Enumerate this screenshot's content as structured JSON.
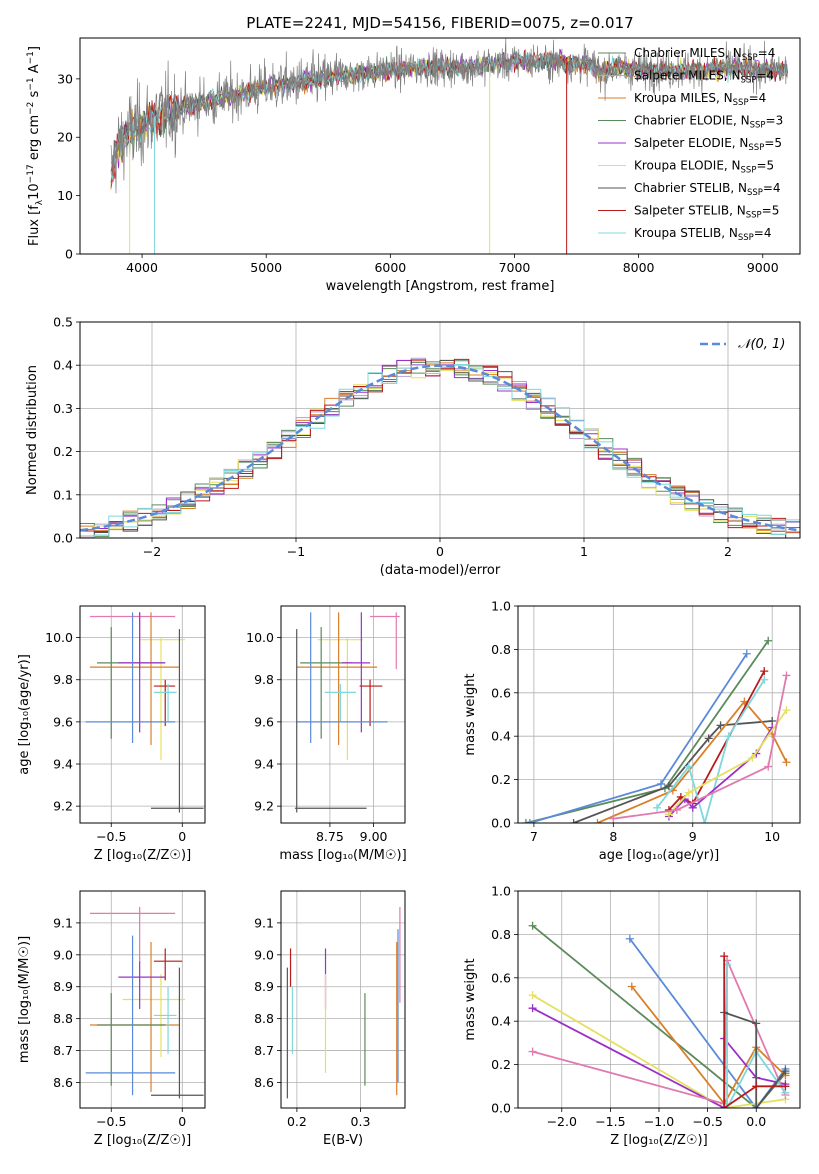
{
  "title": "PLATE=2241, MJD=54156, FIBERID=0075, z=0.017",
  "colors": {
    "Chabrier MILES": "#5b8a6b",
    "Salpeter MILES": "#b59fd6",
    "Kroupa MILES": "#d97f2a",
    "Chabrier ELODIE": "#5b8a5b",
    "Salpeter ELODIE": "#9b30c8",
    "Kroupa ELODIE": "#e6e060",
    "Chabrier STELIB": "#555555",
    "Salpeter STELIB": "#b81b1b",
    "Kroupa STELIB": "#7fd8dc",
    "MILESblue": "#5a8ad9",
    "pink": "#e07ab0",
    "lime": "#c8ec4a",
    "normal": "#5a8ad9"
  },
  "chart_data": [
    {
      "id": "spectrum",
      "type": "line",
      "xlabel": "wavelength [Angstrom, rest frame]",
      "ylabel_parts": {
        "a": "Flux [f",
        "b": "λ",
        "c": "10",
        "d": "−17",
        "e": " erg cm",
        "f": "−2",
        "g": " s",
        "h": "−1",
        "i": " A",
        "j": "−1",
        "k": "]"
      },
      "xlim": [
        3500,
        9300
      ],
      "ylim": [
        0,
        37
      ],
      "xticks": [
        4000,
        5000,
        6000,
        7000,
        8000,
        9000
      ],
      "yticks": [
        0,
        10,
        20,
        30
      ],
      "continuum": {
        "x": [
          3750,
          3800,
          3900,
          4000,
          4100,
          4300,
          4500,
          4800,
          5000,
          5300,
          5600,
          6000,
          6300,
          6600,
          7000,
          7300,
          7600,
          7700,
          7800,
          8000,
          8200,
          8500,
          8800,
          9000,
          9200
        ],
        "y": [
          14,
          18,
          21,
          22,
          23.5,
          25,
          26,
          27.5,
          28.5,
          29.5,
          30.5,
          31.5,
          32,
          32,
          33,
          33,
          32.5,
          31,
          32,
          31.5,
          31.5,
          31.5,
          32,
          31.5,
          31.5
        ]
      },
      "legend": [
        {
          "name": "Chabrier MILES",
          "sub": "SSP",
          "n": "4"
        },
        {
          "name": "Salpeter MILES",
          "sub": "SSP",
          "n": "4"
        },
        {
          "name": "Kroupa MILES",
          "sub": "SSP",
          "n": "4"
        },
        {
          "name": "Chabrier ELODIE",
          "sub": "SSP",
          "n": "3"
        },
        {
          "name": "Salpeter ELODIE",
          "sub": "SSP",
          "n": "5"
        },
        {
          "name": "Kroupa ELODIE",
          "sub": "SSP",
          "n": "5"
        },
        {
          "name": "Chabrier STELIB",
          "sub": "SSP",
          "n": "4"
        },
        {
          "name": "Salpeter STELIB",
          "sub": "SSP",
          "n": "5"
        },
        {
          "name": "Kroupa STELIB",
          "sub": "SSP",
          "n": "4"
        }
      ],
      "legend_prefix": "N"
    },
    {
      "id": "residuals",
      "type": "histogram",
      "xlabel": "(data-model)/error",
      "ylabel": "Normed distribution",
      "xlim": [
        -2.5,
        2.5
      ],
      "ylim": [
        0,
        0.5
      ],
      "xticks": [
        -2,
        -1,
        0,
        1,
        2
      ],
      "yticks": [
        0.0,
        0.1,
        0.2,
        0.3,
        0.4,
        0.5
      ],
      "bin_width": 0.1,
      "legend": "𝒩(0, 1)",
      "grid": true
    },
    {
      "id": "age-vs-Z",
      "type": "scatter",
      "xlabel": "Z [log₁₀(Z/Z☉)]",
      "ylabel": "age  [log₁₀(age/yr)]",
      "xlim": [
        -0.72,
        0.16
      ],
      "ylim": [
        9.12,
        10.15
      ],
      "xticks": [
        -0.5,
        0.0
      ],
      "yticks": [
        9.2,
        9.4,
        9.6,
        9.8,
        10.0
      ],
      "points": [
        {
          "c": "pink",
          "x": -0.3,
          "y": 10.1,
          "xe": [
            -0.65,
            -0.05
          ],
          "ye": [
            9.85,
            10.12
          ]
        },
        {
          "c": "Kroupa ELODIE",
          "x": -0.15,
          "y": 9.99,
          "xe": [
            -0.3,
            0.02
          ],
          "ye": [
            9.42,
            10.0
          ]
        },
        {
          "c": "Kroupa MILES",
          "x": -0.22,
          "y": 9.86,
          "xe": [
            -0.65,
            -0.02
          ],
          "ye": [
            9.49,
            10.12
          ]
        },
        {
          "c": "Chabrier ELODIE",
          "x": -0.5,
          "y": 9.88,
          "xe": [
            -0.6,
            -0.12
          ],
          "ye": [
            9.52,
            10.05
          ]
        },
        {
          "c": "Salpeter ELODIE",
          "x": -0.3,
          "y": 9.88,
          "xe": [
            -0.45,
            -0.12
          ],
          "ye": [
            9.55,
            10.12
          ]
        },
        {
          "c": "Salpeter STELIB",
          "x": -0.12,
          "y": 9.77,
          "xe": [
            -0.2,
            -0.05
          ],
          "ye": [
            9.58,
            9.8
          ]
        },
        {
          "c": "Kroupa STELIB",
          "x": -0.1,
          "y": 9.74,
          "xe": [
            -0.2,
            -0.04
          ],
          "ye": [
            9.6,
            9.78
          ]
        },
        {
          "c": "MILESblue",
          "x": -0.35,
          "y": 9.6,
          "xe": [
            -0.68,
            -0.05
          ],
          "ye": [
            9.5,
            10.12
          ]
        },
        {
          "c": "Chabrier STELIB",
          "x": -0.02,
          "y": 9.19,
          "xe": [
            -0.22,
            0.15
          ],
          "ye": [
            9.17,
            10.04
          ]
        }
      ]
    },
    {
      "id": "age-vs-mass",
      "type": "scatter",
      "xlabel": "mass [log₁₀(M/M☉)]",
      "xlim": [
        8.47,
        9.18
      ],
      "ylim": [
        9.12,
        10.15
      ],
      "xticks": [
        8.75,
        9.0
      ],
      "xticklabels": [
        "8.75",
        "9.00"
      ],
      "yticks": [
        9.2,
        9.4,
        9.6,
        9.8,
        10.0
      ],
      "points": [
        {
          "c": "pink",
          "x": 9.13,
          "y": 10.1,
          "xe": [
            8.98,
            9.15
          ],
          "ye": [
            9.85,
            10.12
          ]
        },
        {
          "c": "Kroupa ELODIE",
          "x": 8.85,
          "y": 9.99,
          "xe": [
            8.68,
            8.94
          ],
          "ye": [
            9.42,
            10.0
          ]
        },
        {
          "c": "Kroupa MILES",
          "x": 8.8,
          "y": 9.86,
          "xe": [
            8.56,
            9.02
          ],
          "ye": [
            9.49,
            10.12
          ]
        },
        {
          "c": "Chabrier ELODIE",
          "x": 8.7,
          "y": 9.88,
          "xe": [
            8.58,
            8.88
          ],
          "ye": [
            9.52,
            10.05
          ]
        },
        {
          "c": "Salpeter ELODIE",
          "x": 8.93,
          "y": 9.88,
          "xe": [
            8.82,
            8.98
          ],
          "ye": [
            9.55,
            10.12
          ]
        },
        {
          "c": "Salpeter STELIB",
          "x": 8.98,
          "y": 9.77,
          "xe": [
            8.92,
            9.05
          ],
          "ye": [
            9.58,
            9.8
          ]
        },
        {
          "c": "Kroupa STELIB",
          "x": 8.81,
          "y": 9.74,
          "xe": [
            8.72,
            8.9
          ],
          "ye": [
            9.6,
            9.78
          ]
        },
        {
          "c": "MILESblue",
          "x": 8.64,
          "y": 9.6,
          "xe": [
            8.56,
            9.08
          ],
          "ye": [
            9.5,
            10.12
          ]
        },
        {
          "c": "Chabrier STELIB",
          "x": 8.56,
          "y": 9.19,
          "xe": [
            8.55,
            8.96
          ],
          "ye": [
            9.17,
            10.04
          ]
        }
      ]
    },
    {
      "id": "weight-vs-age",
      "type": "line",
      "xlabel": "age  [log₁₀(age/yr)]",
      "ylabel": "mass weight",
      "xlim": [
        6.8,
        10.35
      ],
      "ylim": [
        0,
        1.0
      ],
      "xticks": [
        7,
        8,
        9,
        10
      ],
      "yticks": [
        0.0,
        0.2,
        0.4,
        0.6,
        0.8,
        1.0
      ],
      "series": [
        {
          "c": "Chabrier ELODIE",
          "x": [
            6.9,
            8.65,
            9.95
          ],
          "y": [
            0.0,
            0.16,
            0.84
          ]
        },
        {
          "c": "MILESblue",
          "x": [
            6.95,
            8.6,
            9.68
          ],
          "y": [
            0.0,
            0.18,
            0.78
          ]
        },
        {
          "c": "Chabrier STELIB",
          "x": [
            7.5,
            8.7,
            9.2,
            9.35,
            10.0
          ],
          "y": [
            0.0,
            0.17,
            0.39,
            0.45,
            0.47
          ]
        },
        {
          "c": "Kroupa MILES",
          "x": [
            7.8,
            8.75,
            9.65,
            10.0,
            10.18
          ],
          "y": [
            0.0,
            0.15,
            0.56,
            0.41,
            0.28
          ]
        },
        {
          "c": "Salpeter STELIB",
          "x": [
            8.7,
            8.85,
            9.0,
            9.9
          ],
          "y": [
            0.06,
            0.12,
            0.09,
            0.7
          ]
        },
        {
          "c": "Kroupa STELIB",
          "x": [
            8.55,
            8.95,
            9.15,
            9.45,
            9.9
          ],
          "y": [
            0.07,
            0.26,
            0.0,
            0.4,
            0.66
          ]
        },
        {
          "c": "Salpeter ELODIE",
          "x": [
            8.7,
            8.9,
            9.0,
            9.8,
            10.0
          ],
          "y": [
            0.03,
            0.11,
            0.07,
            0.32,
            0.44
          ]
        },
        {
          "c": "Kroupa ELODIE",
          "x": [
            8.7,
            8.95,
            9.75,
            10.18
          ],
          "y": [
            0.04,
            0.14,
            0.3,
            0.52
          ]
        },
        {
          "c": "pink",
          "x": [
            8.0,
            8.8,
            9.95,
            10.18
          ],
          "y": [
            0.02,
            0.06,
            0.26,
            0.68
          ]
        }
      ]
    },
    {
      "id": "mass-vs-Z",
      "type": "scatter",
      "xlabel": "Z [log₁₀(Z/Z☉)]",
      "ylabel": "mass [log₁₀(M/M☉)]",
      "xlim": [
        -0.72,
        0.16
      ],
      "ylim": [
        8.52,
        9.2
      ],
      "xticks": [
        -0.5,
        0.0
      ],
      "yticks": [
        8.6,
        8.7,
        8.8,
        8.9,
        9.0,
        9.1
      ],
      "points": [
        {
          "c": "pink",
          "x": -0.3,
          "y": 9.13,
          "xe": [
            -0.65,
            -0.05
          ],
          "ye": [
            8.98,
            9.15
          ]
        },
        {
          "c": "Kroupa ELODIE",
          "x": -0.15,
          "y": 8.86,
          "xe": [
            -0.42,
            0.02
          ],
          "ye": [
            8.68,
            8.94
          ]
        },
        {
          "c": "Kroupa MILES",
          "x": -0.22,
          "y": 8.78,
          "xe": [
            -0.65,
            -0.02
          ],
          "ye": [
            8.57,
            9.04
          ]
        },
        {
          "c": "Chabrier ELODIE",
          "x": -0.5,
          "y": 8.78,
          "xe": [
            -0.6,
            -0.12
          ],
          "ye": [
            8.59,
            8.88
          ]
        },
        {
          "c": "Salpeter ELODIE",
          "x": -0.3,
          "y": 8.93,
          "xe": [
            -0.45,
            -0.12
          ],
          "ye": [
            8.83,
            8.98
          ]
        },
        {
          "c": "Salpeter STELIB",
          "x": -0.12,
          "y": 8.98,
          "xe": [
            -0.2,
            -0.0
          ],
          "ye": [
            8.92,
            9.02
          ]
        },
        {
          "c": "Kroupa STELIB",
          "x": -0.1,
          "y": 8.81,
          "xe": [
            -0.2,
            -0.04
          ],
          "ye": [
            8.69,
            8.9
          ]
        },
        {
          "c": "MILESblue",
          "x": -0.35,
          "y": 8.63,
          "xe": [
            -0.68,
            -0.05
          ],
          "ye": [
            8.56,
            9.06
          ]
        },
        {
          "c": "Chabrier STELIB",
          "x": -0.02,
          "y": 8.56,
          "xe": [
            -0.22,
            0.15
          ],
          "ye": [
            8.55,
            8.96
          ]
        }
      ]
    },
    {
      "id": "mass-vs-ebv",
      "type": "scatter",
      "xlabel": "E(B-V)",
      "xlim": [
        0.175,
        0.37
      ],
      "ylim": [
        8.52,
        9.2
      ],
      "xticks": [
        0.2,
        0.3
      ],
      "xticklabels": [
        "0.2",
        "0.3"
      ],
      "yticks": [
        8.6,
        8.7,
        8.8,
        8.9,
        9.0,
        9.1
      ],
      "points": [
        {
          "c": "Chabrier STELIB",
          "x": 0.185,
          "ye": [
            8.55,
            8.96
          ]
        },
        {
          "c": "Salpeter STELIB",
          "x": 0.19,
          "ye": [
            8.9,
            9.02
          ]
        },
        {
          "c": "Kroupa STELIB",
          "x": 0.193,
          "ye": [
            8.69,
            8.9
          ]
        },
        {
          "c": "Salpeter ELODIE",
          "x": 0.245,
          "ye": [
            8.83,
            9.02
          ]
        },
        {
          "c": "Kroupa ELODIE",
          "x": 0.245,
          "ye": [
            8.63,
            8.94
          ]
        },
        {
          "c": "Chabrier ELODIE",
          "x": 0.307,
          "ye": [
            8.59,
            8.88
          ]
        },
        {
          "c": "Kroupa MILES",
          "x": 0.357,
          "ye": [
            8.56,
            9.04
          ]
        },
        {
          "c": "MILESblue",
          "x": 0.359,
          "ye": [
            8.6,
            9.08
          ]
        },
        {
          "c": "pink",
          "x": 0.362,
          "ye": [
            8.85,
            9.15
          ]
        }
      ]
    },
    {
      "id": "weight-vs-Z",
      "type": "line",
      "xlabel": "Z [log₁₀(Z/Z☉)]",
      "ylabel": "mass weight",
      "xlim": [
        -2.45,
        0.45
      ],
      "ylim": [
        0,
        1.0
      ],
      "xticks": [
        -2.0,
        -1.5,
        -1.0,
        -0.5,
        0.0
      ],
      "xticklabels": [
        "−2.0",
        "−1.5",
        "−1.0",
        "−0.5",
        "0.0"
      ],
      "yticks": [
        0.0,
        0.2,
        0.4,
        0.6,
        0.8,
        1.0
      ],
      "series": [
        {
          "c": "Chabrier ELODIE",
          "x": [
            -2.3,
            0.0,
            0.3
          ],
          "y": [
            0.84,
            0.0,
            0.16
          ]
        },
        {
          "c": "MILESblue",
          "x": [
            -1.3,
            0.0,
            0.3
          ],
          "y": [
            0.78,
            0.0,
            0.18
          ]
        },
        {
          "c": "Kroupa MILES",
          "x": [
            -1.28,
            -0.33,
            0.0,
            0.3
          ],
          "y": [
            0.56,
            0.02,
            0.28,
            0.15
          ]
        },
        {
          "c": "Kroupa ELODIE",
          "x": [
            -2.3,
            -0.33,
            0.3
          ],
          "y": [
            0.52,
            0.0,
            0.04
          ]
        },
        {
          "c": "Salpeter ELODIE",
          "x": [
            -2.3,
            -0.33,
            -0.33,
            0.0,
            0.3
          ],
          "y": [
            0.46,
            0.0,
            0.32,
            0.14,
            0.11
          ]
        },
        {
          "c": "pink",
          "x": [
            -2.3,
            -0.33,
            -0.3,
            0.3
          ],
          "y": [
            0.26,
            0.02,
            0.68,
            0.06
          ]
        },
        {
          "c": "Kroupa STELIB",
          "x": [
            -0.3,
            -0.3,
            0.0,
            0.3
          ],
          "y": [
            0.66,
            0.0,
            0.26,
            0.07
          ]
        },
        {
          "c": "Chabrier STELIB",
          "x": [
            -0.33,
            0.0,
            0.0,
            0.3
          ],
          "y": [
            0.44,
            0.39,
            0.0,
            0.17
          ]
        },
        {
          "c": "Salpeter STELIB",
          "x": [
            -0.33,
            -0.33,
            0.0,
            0.3
          ],
          "y": [
            0.7,
            0.0,
            0.1,
            0.1
          ]
        }
      ]
    }
  ]
}
